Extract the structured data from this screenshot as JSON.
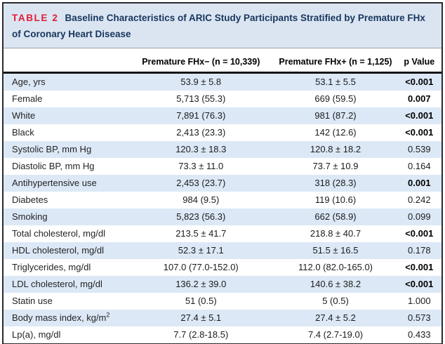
{
  "table": {
    "label": "TABLE 2",
    "title": "Baseline Characteristics of ARIC Study Participants Stratified by Premature FHx of Coronary Heart Disease",
    "columns": {
      "row_header": "",
      "fhx_neg": "Premature FHx− (n = 10,339)",
      "fhx_pos": "Premature FHx+ (n = 1,125)",
      "p_value": "p Value"
    },
    "rows": [
      {
        "label": "Age, yrs",
        "fhx_neg": "53.9 ± 5.8",
        "fhx_pos": "53.1 ± 5.5",
        "p": "<0.001",
        "p_bold": true
      },
      {
        "label": "Female",
        "fhx_neg": "5,713 (55.3)",
        "fhx_pos": "669 (59.5)",
        "p": "0.007",
        "p_bold": true
      },
      {
        "label": "White",
        "fhx_neg": "7,891 (76.3)",
        "fhx_pos": "981 (87.2)",
        "p": "<0.001",
        "p_bold": true
      },
      {
        "label": "Black",
        "fhx_neg": "2,413 (23.3)",
        "fhx_pos": "142 (12.6)",
        "p": "<0.001",
        "p_bold": true
      },
      {
        "label": "Systolic BP, mm Hg",
        "fhx_neg": "120.3 ± 18.3",
        "fhx_pos": "120.8 ± 18.2",
        "p": "0.539",
        "p_bold": false
      },
      {
        "label": "Diastolic BP, mm Hg",
        "fhx_neg": "73.3 ± 11.0",
        "fhx_pos": "73.7 ± 10.9",
        "p": "0.164",
        "p_bold": false
      },
      {
        "label": "Antihypertensive use",
        "fhx_neg": "2,453 (23.7)",
        "fhx_pos": "318 (28.3)",
        "p": "0.001",
        "p_bold": true
      },
      {
        "label": "Diabetes",
        "fhx_neg": "984 (9.5)",
        "fhx_pos": "119 (10.6)",
        "p": "0.242",
        "p_bold": false
      },
      {
        "label": "Smoking",
        "fhx_neg": "5,823 (56.3)",
        "fhx_pos": "662 (58.9)",
        "p": "0.099",
        "p_bold": false
      },
      {
        "label": "Total cholesterol, mg/dl",
        "fhx_neg": "213.5 ± 41.7",
        "fhx_pos": "218.8 ± 40.7",
        "p": "<0.001",
        "p_bold": true
      },
      {
        "label": "HDL cholesterol, mg/dl",
        "fhx_neg": "52.3 ± 17.1",
        "fhx_pos": "51.5 ± 16.5",
        "p": "0.178",
        "p_bold": false
      },
      {
        "label": "Triglycerides, mg/dl",
        "fhx_neg": "107.0 (77.0-152.0)",
        "fhx_pos": "112.0 (82.0-165.0)",
        "p": "<0.001",
        "p_bold": true
      },
      {
        "label": "LDL cholesterol, mg/dl",
        "fhx_neg": "136.2 ± 39.0",
        "fhx_pos": "140.6 ± 38.2",
        "p": "<0.001",
        "p_bold": true
      },
      {
        "label": "Statin use",
        "fhx_neg": "51 (0.5)",
        "fhx_pos": "5 (0.5)",
        "p": "1.000",
        "p_bold": false
      },
      {
        "label": "Body mass index, kg/m",
        "label_sup": "2",
        "fhx_neg": "27.4 ± 5.1",
        "fhx_pos": "27.4 ± 5.2",
        "p": "0.573",
        "p_bold": false
      },
      {
        "label": "Lp(a), mg/dl",
        "fhx_neg": "7.7 (2.8-18.5)",
        "fhx_pos": "7.4 (2.7-19.0)",
        "p": "0.433",
        "p_bold": false
      }
    ]
  },
  "colors": {
    "title_band_bg": "#dbe5f2",
    "title_text": "#17365d",
    "table_label_red": "#e01c33",
    "row_stripe_blue": "#dce8f6",
    "border_dark": "#2b2b2e",
    "header_rule_black": "#141414"
  }
}
